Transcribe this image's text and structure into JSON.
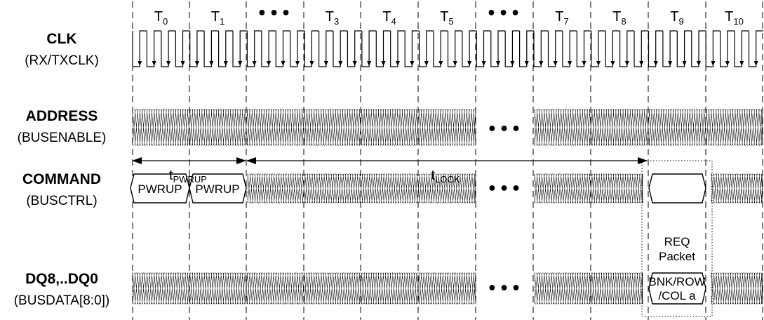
{
  "time_labels": [
    {
      "base": "T",
      "sub": "0"
    },
    {
      "base": "T",
      "sub": "1"
    },
    {
      "base": "•••",
      "sub": ""
    },
    {
      "base": "T",
      "sub": "3"
    },
    {
      "base": "T",
      "sub": "4"
    },
    {
      "base": "T",
      "sub": "5"
    },
    {
      "base": "•••",
      "sub": ""
    },
    {
      "base": "T",
      "sub": "7"
    },
    {
      "base": "T",
      "sub": "8"
    },
    {
      "base": "T",
      "sub": "9"
    },
    {
      "base": "T",
      "sub": "10"
    }
  ],
  "signals": [
    {
      "name": "CLK",
      "alias": "(RX/TXCLK)"
    },
    {
      "name": "ADDRESS",
      "alias": "(BUSENABLE)"
    },
    {
      "name": "COMMAND",
      "alias": "(BUSCTRL)"
    },
    {
      "name": "DQ8,..DQ0",
      "alias": "(BUSDATA[8:0])"
    }
  ],
  "gap_dots": "•••",
  "command_boxes": [
    "PWRUP",
    "PWRUP"
  ],
  "timing_params": [
    {
      "base": "t",
      "sub": "PWRUP"
    },
    {
      "base": "t",
      "sub": "LOCK"
    }
  ],
  "req_packet": {
    "line1": "REQ",
    "line2": "Packet"
  },
  "data_box": {
    "line1": "BNK/ROW",
    "line2": "/COL a"
  }
}
